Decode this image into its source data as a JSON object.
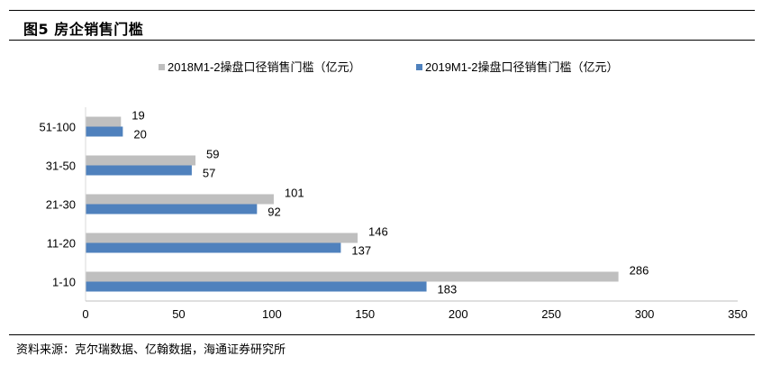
{
  "figure": {
    "title": "图5  房企销售门槛",
    "source": "资料来源：克尔瑞数据、亿翰数据，海通证券研究所"
  },
  "chart_data": {
    "type": "bar",
    "orientation": "horizontal",
    "categories": [
      "51-100",
      "31-50",
      "21-30",
      "11-20",
      "1-10"
    ],
    "series": [
      {
        "name": "2018M1-2操盘口径销售门槛（亿元）",
        "values": [
          19,
          59,
          101,
          146,
          286
        ],
        "color": "#bfbfbf"
      },
      {
        "name": "2019M1-2操盘口径销售门槛（亿元）",
        "values": [
          20,
          57,
          92,
          137,
          183
        ],
        "color": "#4f81bd"
      }
    ],
    "xlim": [
      0,
      350
    ],
    "xticks": [
      0,
      50,
      100,
      150,
      200,
      250,
      300,
      350
    ],
    "xlabel": "",
    "ylabel": "",
    "grid": false,
    "legend_position": "top",
    "data_labels": true
  }
}
